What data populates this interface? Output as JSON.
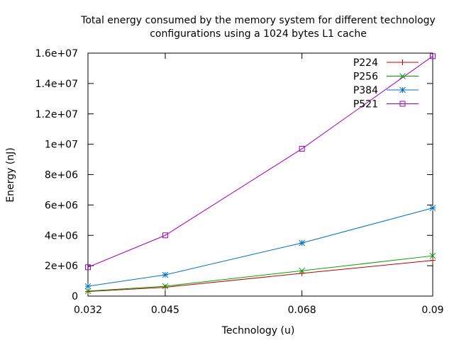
{
  "chart_data": {
    "type": "line",
    "title_lines": [
      "Total energy consumed by the memory system for different technology",
      "configurations using a 1024 bytes L1 cache"
    ],
    "xlabel": "Technology (u)",
    "ylabel": "Energy (nJ)",
    "x": [
      0.032,
      0.045,
      0.068,
      0.09
    ],
    "x_ticks": [
      "0.032",
      "0.045",
      "0.068",
      "0.09"
    ],
    "xlim": [
      0.032,
      0.09
    ],
    "ylim": [
      0,
      16000000
    ],
    "y_ticks": [
      {
        "value": 0,
        "label": "0"
      },
      {
        "value": 2000000,
        "label": "2e+06"
      },
      {
        "value": 4000000,
        "label": "4e+06"
      },
      {
        "value": 6000000,
        "label": "6e+06"
      },
      {
        "value": 8000000,
        "label": "8e+06"
      },
      {
        "value": 10000000,
        "label": "1e+07"
      },
      {
        "value": 12000000,
        "label": "1.2e+07"
      },
      {
        "value": 14000000,
        "label": "1.4e+07"
      },
      {
        "value": 16000000,
        "label": "1.6e+07"
      }
    ],
    "grid": false,
    "legend_position": "top-right",
    "series": [
      {
        "name": "P224",
        "color": "#c00000",
        "marker": "plus",
        "values": [
          300000,
          580000,
          1500000,
          2350000
        ]
      },
      {
        "name": "P256",
        "color": "#00a000",
        "marker": "cross",
        "values": [
          330000,
          650000,
          1670000,
          2650000
        ]
      },
      {
        "name": "P384",
        "color": "#0070c0",
        "marker": "star",
        "values": [
          650000,
          1400000,
          3500000,
          5800000
        ]
      },
      {
        "name": "P521",
        "color": "#a000c0",
        "marker": "square",
        "values": [
          1900000,
          4000000,
          9700000,
          15800000
        ]
      }
    ]
  }
}
